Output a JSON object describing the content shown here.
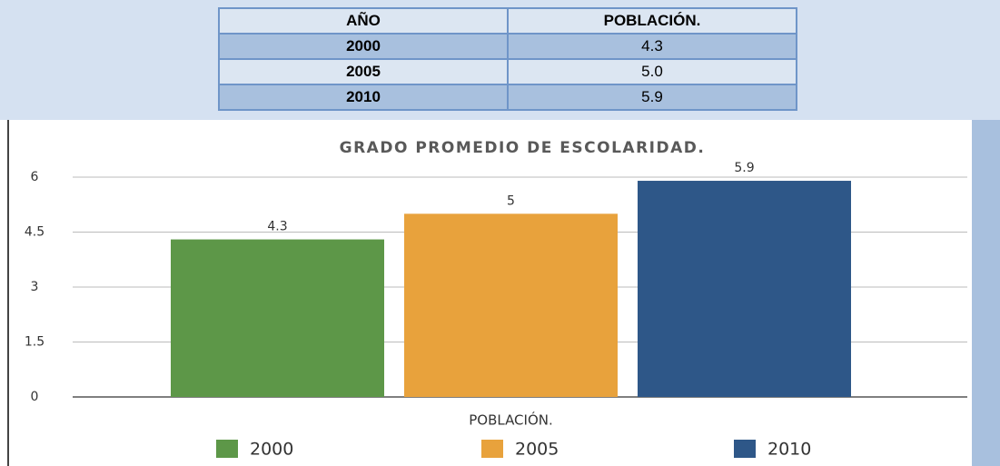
{
  "table": {
    "header": [
      "AÑO",
      "POBLACIÓN."
    ],
    "rows": [
      [
        "2000",
        "4.3"
      ],
      [
        "2005",
        "5.0"
      ],
      [
        "2010",
        "5.9"
      ]
    ]
  },
  "chart_data": {
    "type": "bar",
    "title": "GRADO PROMEDIO DE ESCOLARIDAD.",
    "categories": [
      "POBLACIÓN."
    ],
    "series": [
      {
        "name": "2000",
        "color": "#5d9748",
        "values": [
          4.3
        ]
      },
      {
        "name": "2005",
        "color": "#e8a23c",
        "values": [
          5
        ]
      },
      {
        "name": "2010",
        "color": "#2e5788",
        "values": [
          5.9
        ]
      }
    ],
    "ylim": [
      0,
      6
    ],
    "yticks": [
      0,
      1.5,
      3,
      4.5,
      6
    ],
    "grid": true,
    "legend": "bottom"
  }
}
